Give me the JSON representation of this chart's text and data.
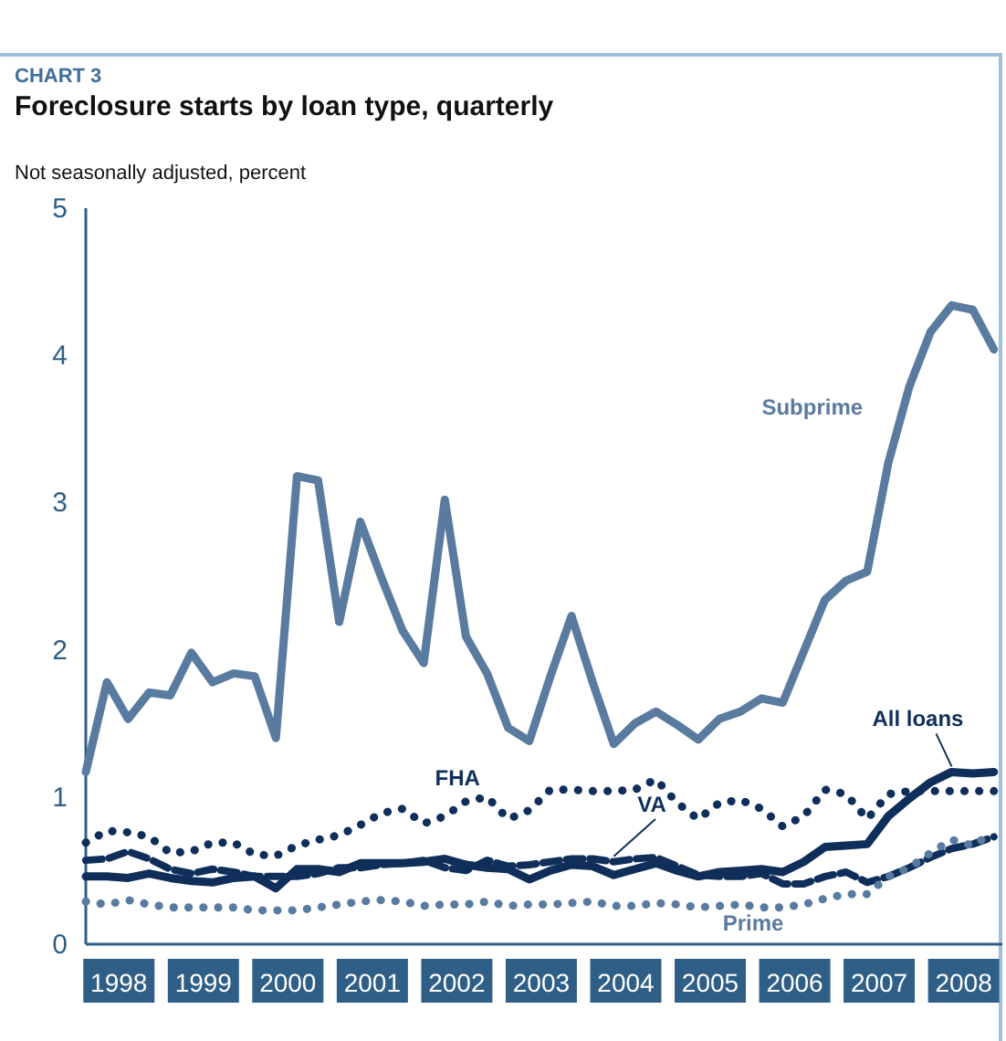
{
  "chart_data": {
    "type": "line",
    "title": "Foreclosure starts by loan type, quarterly",
    "ylabel": "Not seasonally adjusted, percent",
    "annotations": [
      "CHART 3"
    ],
    "x": [
      1998,
      1998.25,
      1998.5,
      1998.75,
      1999,
      1999.25,
      1999.5,
      1999.75,
      2000,
      2000.25,
      2000.5,
      2000.75,
      2001,
      2001.25,
      2001.5,
      2001.75,
      2002,
      2002.25,
      2002.5,
      2002.75,
      2003,
      2003.25,
      2003.5,
      2003.75,
      2004,
      2004.25,
      2004.5,
      2004.75,
      2005,
      2005.25,
      2005.5,
      2005.75,
      2006,
      2006.25,
      2006.5,
      2006.75,
      2007,
      2007.25,
      2007.5,
      2007.75,
      2008,
      2008.25,
      2008.5,
      2008.75
    ],
    "xlim": [
      1998,
      2008.85
    ],
    "xticks": [
      {
        "value": 1998.5,
        "label": "1998"
      },
      {
        "value": 1999.5,
        "label": "1999"
      },
      {
        "value": 2000.5,
        "label": "2000"
      },
      {
        "value": 2001.5,
        "label": "2001"
      },
      {
        "value": 2002.5,
        "label": "2002"
      },
      {
        "value": 2003.5,
        "label": "2003"
      },
      {
        "value": 2004.5,
        "label": "2004"
      },
      {
        "value": 2005.5,
        "label": "2005"
      },
      {
        "value": 2006.5,
        "label": "2006"
      },
      {
        "value": 2007.5,
        "label": "2007"
      },
      {
        "value": 2008.5,
        "label": "2008"
      }
    ],
    "ylim": [
      0,
      5
    ],
    "yticks": [
      0,
      1,
      2,
      3,
      4,
      5
    ],
    "grid": false,
    "legend": false,
    "marker": "none",
    "series": [
      {
        "name": "Subprime",
        "color": "#5a7ba0",
        "line_style": "solid",
        "values": [
          1.17,
          1.78,
          1.53,
          1.71,
          1.69,
          1.98,
          1.78,
          1.84,
          1.82,
          1.4,
          3.18,
          3.15,
          2.19,
          2.87,
          2.49,
          2.13,
          1.91,
          3.02,
          2.09,
          1.84,
          1.47,
          1.38,
          1.82,
          2.23,
          1.78,
          1.36,
          1.5,
          1.58,
          1.49,
          1.39,
          1.53,
          1.58,
          1.67,
          1.64,
          1.99,
          2.34,
          2.47,
          2.53,
          3.27,
          3.79,
          4.16,
          4.34,
          4.31,
          4.04
        ]
      },
      {
        "name": "All loans",
        "color": "#0f2f5a",
        "line_style": "solid",
        "values": [
          0.46,
          0.46,
          0.45,
          0.48,
          0.45,
          0.43,
          0.42,
          0.45,
          0.46,
          0.38,
          0.51,
          0.51,
          0.49,
          0.55,
          0.55,
          0.55,
          0.56,
          0.58,
          0.54,
          0.52,
          0.51,
          0.44,
          0.5,
          0.54,
          0.53,
          0.47,
          0.51,
          0.55,
          0.5,
          0.46,
          0.49,
          0.5,
          0.51,
          0.49,
          0.56,
          0.66,
          0.67,
          0.68,
          0.87,
          0.99,
          1.1,
          1.17,
          1.16,
          1.17
        ]
      },
      {
        "name": "FHA",
        "color": "#0f2f5a",
        "line_style": "dotted",
        "values": [
          0.69,
          0.77,
          0.76,
          0.73,
          0.62,
          0.63,
          0.69,
          0.69,
          0.61,
          0.6,
          0.67,
          0.71,
          0.74,
          0.81,
          0.89,
          0.92,
          0.82,
          0.87,
          0.97,
          1.0,
          0.85,
          0.91,
          1.05,
          1.05,
          1.04,
          1.04,
          1.05,
          1.12,
          0.96,
          0.85,
          0.96,
          0.98,
          0.92,
          0.8,
          0.87,
          1.05,
          1.02,
          0.85,
          1.02,
          1.04,
          1.04,
          1.04,
          1.04,
          1.04
        ]
      },
      {
        "name": "VA",
        "color": "#0f2f5a",
        "line_style": "dashed",
        "values": [
          0.57,
          0.58,
          0.63,
          0.58,
          0.51,
          0.48,
          0.51,
          0.49,
          0.46,
          0.46,
          0.46,
          0.48,
          0.52,
          0.52,
          0.54,
          0.55,
          0.57,
          0.52,
          0.5,
          0.57,
          0.53,
          0.54,
          0.56,
          0.58,
          0.58,
          0.56,
          0.58,
          0.59,
          0.53,
          0.47,
          0.46,
          0.46,
          0.48,
          0.41,
          0.41,
          0.46,
          0.49,
          0.42,
          0.46,
          0.52,
          0.59,
          0.65,
          0.68,
          0.73
        ]
      },
      {
        "name": "Prime",
        "color": "#5a7ba0",
        "line_style": "dotted",
        "values": [
          0.29,
          0.27,
          0.3,
          0.27,
          0.25,
          0.25,
          0.25,
          0.25,
          0.23,
          0.23,
          0.23,
          0.25,
          0.27,
          0.29,
          0.3,
          0.29,
          0.26,
          0.27,
          0.27,
          0.29,
          0.26,
          0.27,
          0.27,
          0.28,
          0.29,
          0.26,
          0.26,
          0.28,
          0.27,
          0.25,
          0.26,
          0.27,
          0.25,
          0.25,
          0.27,
          0.31,
          0.34,
          0.34,
          0.46,
          0.52,
          0.62,
          0.71,
          0.67,
          0.76
        ]
      }
    ]
  }
}
